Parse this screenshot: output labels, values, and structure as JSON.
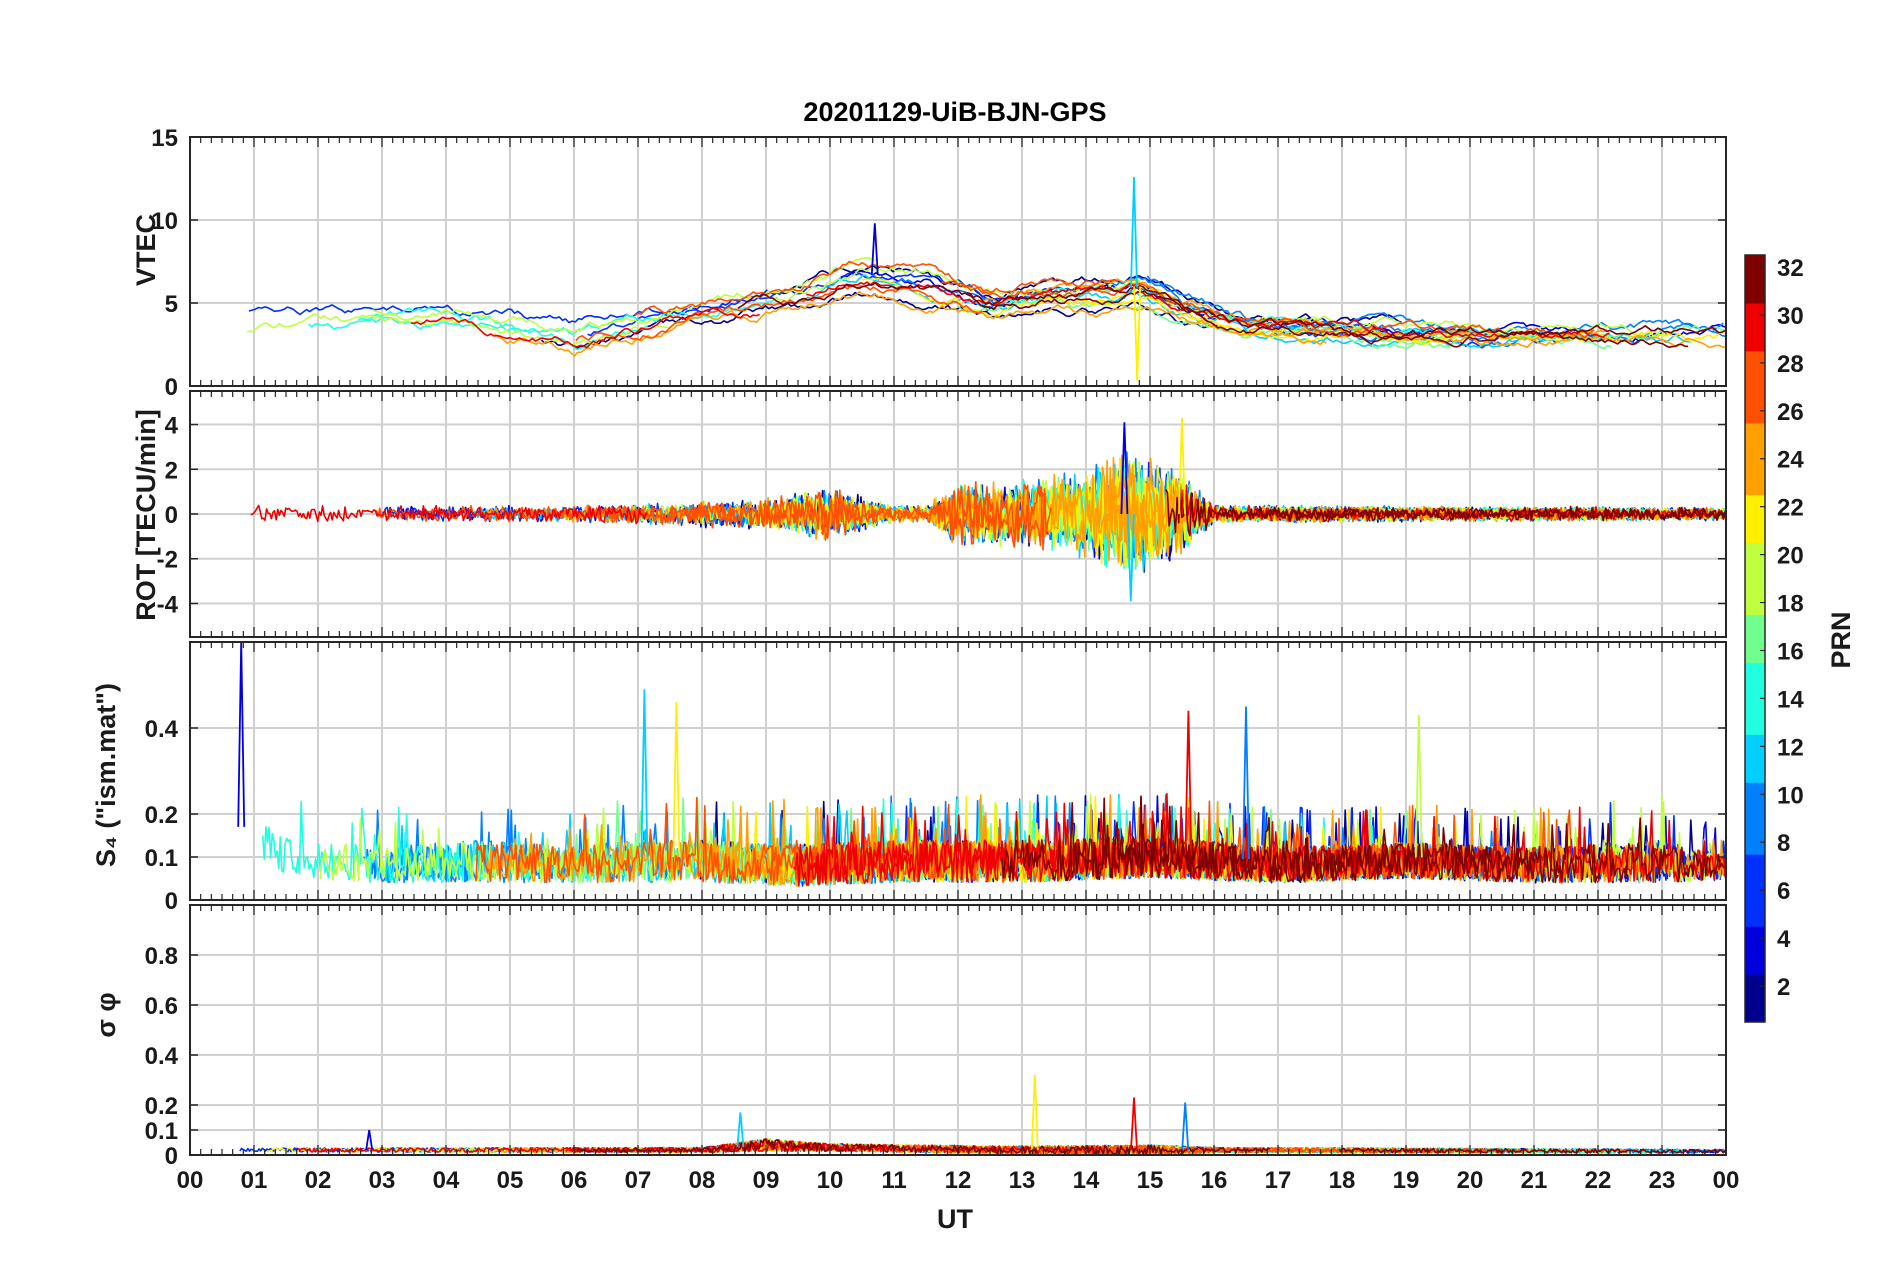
{
  "chart_data": {
    "type": "line",
    "title": "20201129-UiB-BJN-GPS",
    "xlabel": "UT",
    "x_tick_labels": [
      "00",
      "01",
      "02",
      "03",
      "04",
      "05",
      "06",
      "07",
      "08",
      "09",
      "10",
      "11",
      "12",
      "13",
      "14",
      "15",
      "16",
      "17",
      "18",
      "19",
      "20",
      "21",
      "22",
      "23",
      "00"
    ],
    "xlim_hours": [
      0,
      24
    ],
    "grid": true,
    "colorbar": {
      "label": "PRN",
      "range": [
        1,
        32
      ],
      "ticks": [
        "2",
        "4",
        "6",
        "8",
        "10",
        "12",
        "14",
        "16",
        "18",
        "20",
        "22",
        "24",
        "26",
        "28",
        "30",
        "32"
      ],
      "colormap": "jet",
      "colors": [
        "#00008f",
        "#0000df",
        "#0030ff",
        "#0080ff",
        "#00cfff",
        "#20ffdf",
        "#70ff8f",
        "#bfff40",
        "#ffef00",
        "#ff9f00",
        "#ff5000",
        "#ef0000",
        "#800000"
      ]
    },
    "panels": [
      {
        "id": "vtec",
        "ylabel": "VTEC",
        "ylim": [
          0,
          15
        ],
        "y_ticks": [
          "0",
          "5",
          "10",
          "15"
        ],
        "envelope_hours": [
          0,
          2,
          4,
          6,
          8,
          9.5,
          10.5,
          11.5,
          12.5,
          13.5,
          14.5,
          14.8,
          15.5,
          16.5,
          18,
          20,
          22,
          24
        ],
        "envelope_center": [
          3.6,
          4.1,
          4.2,
          3.0,
          4.5,
          5.5,
          6.8,
          6.3,
          5.0,
          5.6,
          5.6,
          6.0,
          4.8,
          3.7,
          3.4,
          3.1,
          3.1,
          3.3
        ],
        "envelope_spread": [
          1.1,
          1.0,
          1.0,
          1.3,
          1.2,
          1.8,
          2.2,
          2.0,
          1.4,
          1.8,
          1.8,
          2.2,
          1.4,
          0.9,
          0.8,
          0.8,
          0.8,
          0.9
        ],
        "peaks": [
          {
            "hour": 10.7,
            "value": 9.8
          },
          {
            "hour": 14.75,
            "value": 12.6
          },
          {
            "hour": 14.8,
            "value": 0.3
          }
        ]
      },
      {
        "id": "rot",
        "ylabel": "ROT [TECU/min]",
        "ylim": [
          -5.5,
          5.5
        ],
        "y_ticks": [
          "-4",
          "-2",
          "0",
          "2",
          "4"
        ],
        "envelope_hours": [
          0,
          6,
          9,
          10,
          11,
          11.5,
          12,
          13,
          14,
          14.7,
          15.5,
          16,
          24
        ],
        "envelope_center": [
          0,
          0,
          0,
          0,
          0,
          0,
          0,
          0,
          0,
          0,
          0,
          0,
          0
        ],
        "envelope_spread": [
          0.5,
          0.5,
          0.9,
          1.6,
          0.5,
          0.5,
          1.9,
          2.0,
          2.6,
          3.8,
          2.5,
          0.5,
          0.4
        ],
        "peaks": [
          {
            "hour": 14.6,
            "value": 4.1
          },
          {
            "hour": 14.7,
            "value": -3.9
          },
          {
            "hour": 15.5,
            "value": 4.3
          }
        ]
      },
      {
        "id": "s4",
        "ylabel": "S₄ (\"ism.mat\")",
        "ylim": [
          0,
          0.6
        ],
        "y_ticks": [
          "0",
          "0.1",
          "0.2",
          "0.4"
        ],
        "envelope_hours": [
          0,
          0.8,
          1.5,
          3,
          4.5,
          6,
          7,
          8,
          9.5,
          11,
          13,
          15,
          17,
          19,
          21,
          23,
          24
        ],
        "envelope_center": [
          0.1,
          0.17,
          0.11,
          0.09,
          0.1,
          0.09,
          0.1,
          0.1,
          0.09,
          0.1,
          0.1,
          0.11,
          0.09,
          0.1,
          0.09,
          0.1,
          0.08
        ],
        "envelope_spread": [
          0.06,
          0.08,
          0.07,
          0.06,
          0.07,
          0.06,
          0.07,
          0.07,
          0.07,
          0.07,
          0.07,
          0.07,
          0.06,
          0.06,
          0.06,
          0.07,
          0.04
        ],
        "peaks": [
          {
            "hour": 0.8,
            "value": 0.6
          },
          {
            "hour": 7.1,
            "value": 0.49
          },
          {
            "hour": 7.6,
            "value": 0.46
          },
          {
            "hour": 15.6,
            "value": 0.44
          },
          {
            "hour": 16.5,
            "value": 0.45
          },
          {
            "hour": 19.2,
            "value": 0.43
          }
        ]
      },
      {
        "id": "sigma_phi",
        "ylabel": "σ φ",
        "ylim": [
          0,
          1
        ],
        "y_ticks": [
          "0",
          "0.1",
          "0.2",
          "0.4",
          "0.6",
          "0.8"
        ],
        "envelope_hours": [
          0,
          8,
          9,
          10,
          13,
          15,
          16,
          24
        ],
        "envelope_center": [
          0.02,
          0.02,
          0.04,
          0.03,
          0.02,
          0.02,
          0.02,
          0.015
        ],
        "envelope_spread": [
          0.015,
          0.02,
          0.05,
          0.03,
          0.03,
          0.04,
          0.02,
          0.015
        ],
        "peaks": [
          {
            "hour": 2.8,
            "value": 0.1
          },
          {
            "hour": 8.6,
            "value": 0.17
          },
          {
            "hour": 13.2,
            "value": 0.32
          },
          {
            "hour": 14.75,
            "value": 0.23
          },
          {
            "hour": 15.55,
            "value": 0.21
          }
        ]
      }
    ]
  }
}
